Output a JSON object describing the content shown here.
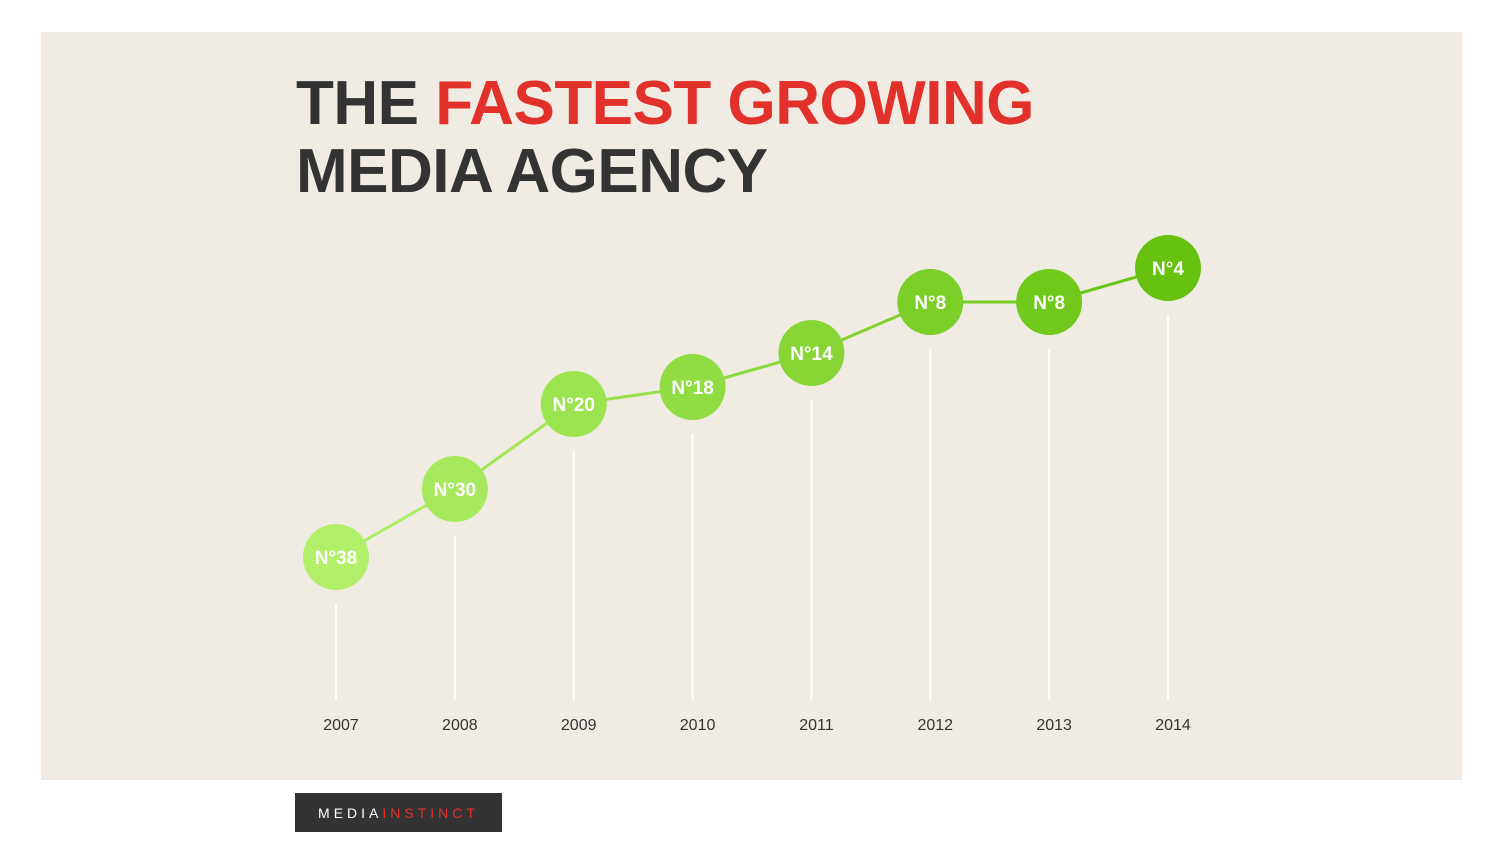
{
  "title": {
    "line1_prefix": "THE",
    "line1_accent": "FASTEST GROWING",
    "line2": "MEDIA AGENCY"
  },
  "logo": {
    "part1": "MEDIA",
    "part2": "INSTINCT"
  },
  "colors": {
    "background": "#f0ece4",
    "title_text": "#333333",
    "accent_red": "#e2302a",
    "green_light": "#b2f06a",
    "green_dark": "#66c20e",
    "connector": "#7fcf2f",
    "stem": "#ffffff"
  },
  "chart_data": {
    "type": "line",
    "x": [
      "2007",
      "2008",
      "2009",
      "2010",
      "2011",
      "2012",
      "2013",
      "2014"
    ],
    "values": [
      38,
      30,
      20,
      18,
      14,
      8,
      8,
      4
    ],
    "labels": [
      "N°38",
      "N°30",
      "N°20",
      "N°18",
      "N°14",
      "N°8",
      "N°8",
      "N°4"
    ],
    "y_axis": "rank, inverted (lower number = higher position)",
    "ylim": [
      40,
      2
    ],
    "grid": false
  }
}
